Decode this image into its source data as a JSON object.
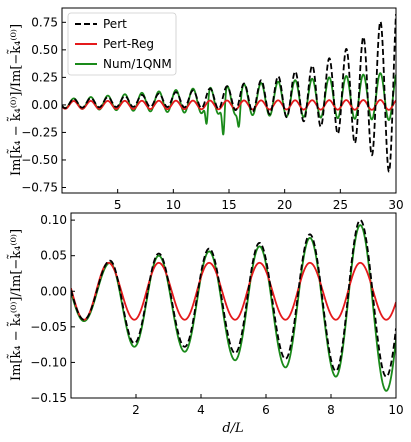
{
  "figure": {
    "ylabel_top": "Im[k̃₄ − k̃₄⁽⁰⁾]/Im[−k̃₄⁽⁰⁾]",
    "ylabel_bottom": "Im[k̃₄ − k̃₄⁽⁰⁾]/Im[−k̃₄⁽⁰⁾]",
    "xlabel_bottom": "d/L"
  },
  "chart_data": [
    {
      "type": "line",
      "title": "",
      "xlabel": "",
      "ylabel": "Im[k̃₄ − k̃₄⁽⁰⁾]/Im[−k̃₄⁽⁰⁾]",
      "xlim": [
        0,
        30
      ],
      "ylim": [
        -0.8,
        0.88
      ],
      "xticks": [
        5,
        10,
        15,
        20,
        25,
        30
      ],
      "yticks": [
        -0.75,
        -0.5,
        -0.25,
        0.0,
        0.25,
        0.5,
        0.75
      ],
      "xtick_labels": [
        "5",
        "10",
        "15",
        "20",
        "25",
        "30"
      ],
      "ytick_labels": [
        "−0.75",
        "−0.50",
        "−0.25",
        "0.00",
        "0.25",
        "0.50",
        "0.75"
      ],
      "legend": "top-left",
      "grid": false,
      "series": [
        {
          "name": "Pert",
          "color": "#000000",
          "dash": "6,3",
          "amp": [
            0.04,
            0.8
          ],
          "amp_growth": "exponential",
          "period": 1.53,
          "phase_ref_x": 1.05,
          "envelope_lift": [
            0.01,
            0.12
          ]
        },
        {
          "name": "Pert-Reg",
          "color": "#e41a1c",
          "dash": "",
          "amp": [
            0.035,
            0.045
          ],
          "amp_growth": "linear",
          "period": 1.53,
          "phase_ref_x": 1.05,
          "envelope_lift": [
            0.0,
            0.0
          ]
        },
        {
          "name": "Num/1QNM",
          "color": "#1a8a1a",
          "dash": "",
          "amp": [
            0.04,
            0.22
          ],
          "amp_growth": "linear",
          "period": 1.53,
          "phase_ref_x": 1.05,
          "envelope_lift": [
            0.01,
            0.08
          ],
          "notes_dips": [
            [
              14.5,
              -0.44
            ],
            [
              13.0,
              -0.35
            ],
            [
              15.9,
              -0.3
            ]
          ]
        }
      ]
    },
    {
      "type": "line",
      "title": "",
      "xlabel": "d/L",
      "ylabel": "Im[k̃₄ − k̃₄⁽⁰⁾]/Im[−k̃₄⁽⁰⁾]",
      "xlim": [
        0,
        10
      ],
      "ylim": [
        -0.15,
        0.11
      ],
      "xticks": [
        2,
        4,
        6,
        8,
        10
      ],
      "yticks": [
        -0.15,
        -0.1,
        -0.05,
        0.0,
        0.05,
        0.1
      ],
      "xtick_labels": [
        "2",
        "4",
        "6",
        "8",
        "10"
      ],
      "ytick_labels": [
        "−0.15",
        "−0.10",
        "−0.05",
        "0.00",
        "0.05",
        "0.10"
      ],
      "grid": false,
      "series": [
        {
          "name": "Pert",
          "color": "#000000",
          "dash": "6,3",
          "peaks": [
            [
              1.2,
              0.043
            ],
            [
              2.7,
              0.053
            ],
            [
              4.25,
              0.06
            ],
            [
              5.8,
              0.068
            ],
            [
              7.35,
              0.08
            ],
            [
              8.9,
              0.1
            ]
          ],
          "troughs": [
            [
              0.4,
              -0.04
            ],
            [
              1.95,
              -0.073
            ],
            [
              3.5,
              -0.078
            ],
            [
              5.05,
              -0.087
            ],
            [
              6.6,
              -0.095
            ],
            [
              8.15,
              -0.112
            ],
            [
              9.7,
              -0.12
            ]
          ]
        },
        {
          "name": "Pert-Reg",
          "color": "#e41a1c",
          "dash": "",
          "peaks": [
            [
              1.15,
              0.04
            ],
            [
              2.7,
              0.04
            ],
            [
              4.25,
              0.04
            ],
            [
              5.8,
              0.04
            ],
            [
              7.35,
              0.04
            ],
            [
              8.9,
              0.04
            ]
          ],
          "troughs": [
            [
              0.4,
              -0.04
            ],
            [
              1.95,
              -0.04
            ],
            [
              3.5,
              -0.04
            ],
            [
              5.05,
              -0.04
            ],
            [
              6.6,
              -0.04
            ],
            [
              8.15,
              -0.04
            ],
            [
              9.7,
              -0.04
            ]
          ]
        },
        {
          "name": "Num/1QNM",
          "color": "#1a8a1a",
          "dash": "",
          "peaks": [
            [
              1.2,
              0.04
            ],
            [
              2.7,
              0.05
            ],
            [
              4.25,
              0.056
            ],
            [
              5.8,
              0.063
            ],
            [
              7.35,
              0.075
            ],
            [
              8.9,
              0.093
            ]
          ],
          "troughs": [
            [
              0.4,
              -0.042
            ],
            [
              1.95,
              -0.078
            ],
            [
              3.5,
              -0.085
            ],
            [
              5.05,
              -0.097
            ],
            [
              6.6,
              -0.107
            ],
            [
              8.15,
              -0.12
            ],
            [
              9.7,
              -0.14
            ]
          ]
        }
      ]
    }
  ]
}
